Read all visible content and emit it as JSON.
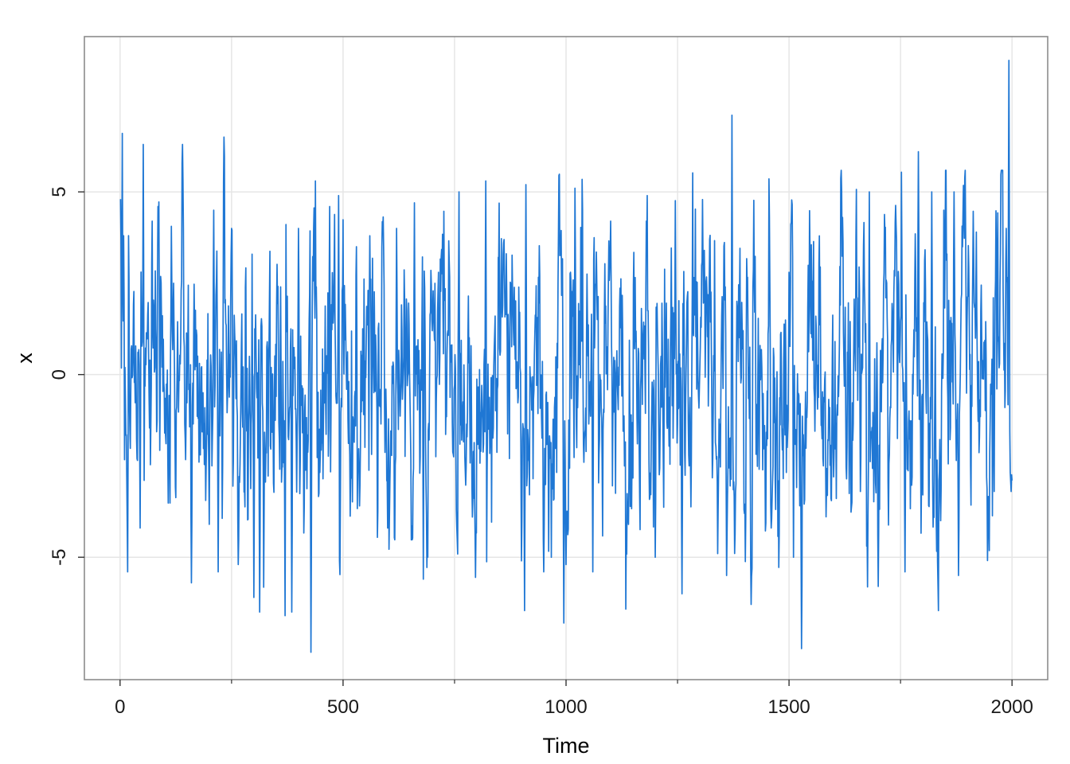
{
  "chart_data": {
    "type": "line",
    "title": "",
    "xlabel": "Time",
    "ylabel": "x",
    "xlim": [
      -80,
      2080
    ],
    "ylim": [
      -8.35,
      9.25
    ],
    "x_ticks": [
      0,
      500,
      1000,
      1500,
      2000
    ],
    "x_tick_labels": [
      "0",
      "500",
      "1000",
      "1500",
      "2000"
    ],
    "x_minor_ticks": [
      250,
      750,
      1250,
      1750
    ],
    "y_ticks": [
      -5,
      0,
      5
    ],
    "y_tick_labels": [
      "-5",
      "0",
      "5"
    ],
    "grid": true,
    "series": [
      {
        "color": "#1f77d4",
        "n_points": 2000,
        "x_start": 1,
        "x_step": 1,
        "summary": {
          "min": -7.6,
          "max": 8.6,
          "mean": 0.0
        },
        "key_points": [
          [
            1,
            4.8
          ],
          [
            5,
            6.6
          ],
          [
            8,
            3.8
          ],
          [
            15,
            -2.8
          ],
          [
            17,
            -5.4
          ],
          [
            25,
            0.7
          ],
          [
            45,
            -4.2
          ],
          [
            52,
            6.3
          ],
          [
            60,
            1.0
          ],
          [
            72,
            4.2
          ],
          [
            85,
            4.6
          ],
          [
            100,
            -1.6
          ],
          [
            120,
            2.5
          ],
          [
            140,
            6.3
          ],
          [
            160,
            -5.7
          ],
          [
            180,
            -2.2
          ],
          [
            200,
            -4.1
          ],
          [
            210,
            4.5
          ],
          [
            220,
            -5.4
          ],
          [
            233,
            6.5
          ],
          [
            250,
            4.0
          ],
          [
            265,
            -5.2
          ],
          [
            290,
            0.5
          ],
          [
            300,
            -6.1
          ],
          [
            313,
            -6.5
          ],
          [
            330,
            0.9
          ],
          [
            360,
            2.4
          ],
          [
            370,
            -6.6
          ],
          [
            385,
            -6.5
          ],
          [
            400,
            4.0
          ],
          [
            428,
            -7.6
          ],
          [
            440,
            2.4
          ],
          [
            470,
            4.6
          ],
          [
            490,
            4.9
          ],
          [
            530,
            3.5
          ],
          [
            560,
            3.8
          ],
          [
            600,
            -4.2
          ],
          [
            620,
            4.0
          ],
          [
            660,
            4.7
          ],
          [
            680,
            -5.6
          ],
          [
            700,
            1.2
          ],
          [
            760,
            5.0
          ],
          [
            790,
            -3.9
          ],
          [
            820,
            5.3
          ],
          [
            860,
            3.6
          ],
          [
            900,
            -5.1
          ],
          [
            910,
            5.2
          ],
          [
            950,
            -5.4
          ],
          [
            995,
            -6.8
          ],
          [
            1000,
            -5.2
          ],
          [
            1010,
            2.8
          ],
          [
            1020,
            5.1
          ],
          [
            1040,
            -2.4
          ],
          [
            1060,
            -5.4
          ],
          [
            1100,
            4.2
          ],
          [
            1140,
            -4.1
          ],
          [
            1180,
            4.2
          ],
          [
            1200,
            -5.0
          ],
          [
            1260,
            -6.0
          ],
          [
            1310,
            3.4
          ],
          [
            1340,
            -4.9
          ],
          [
            1360,
            -5.5
          ],
          [
            1372,
            7.1
          ],
          [
            1400,
            -3.8
          ],
          [
            1460,
            -4.2
          ],
          [
            1500,
            2.8
          ],
          [
            1510,
            -5.0
          ],
          [
            1528,
            -7.5
          ],
          [
            1560,
            1.6
          ],
          [
            1600,
            -2.8
          ],
          [
            1620,
            4.3
          ],
          [
            1660,
            -3.2
          ],
          [
            1680,
            5.0
          ],
          [
            1700,
            -5.8
          ],
          [
            1740,
            4.1
          ],
          [
            1760,
            -5.4
          ],
          [
            1790,
            6.1
          ],
          [
            1820,
            5.0
          ],
          [
            1840,
            -4.0
          ],
          [
            1870,
            5.0
          ],
          [
            1880,
            -5.5
          ],
          [
            1920,
            3.9
          ],
          [
            1960,
            -3.2
          ],
          [
            1972,
            0.3
          ],
          [
            1987,
            4.0
          ],
          [
            1993,
            8.6
          ],
          [
            1998,
            -3.2
          ],
          [
            2000,
            -2.9
          ]
        ]
      }
    ]
  }
}
